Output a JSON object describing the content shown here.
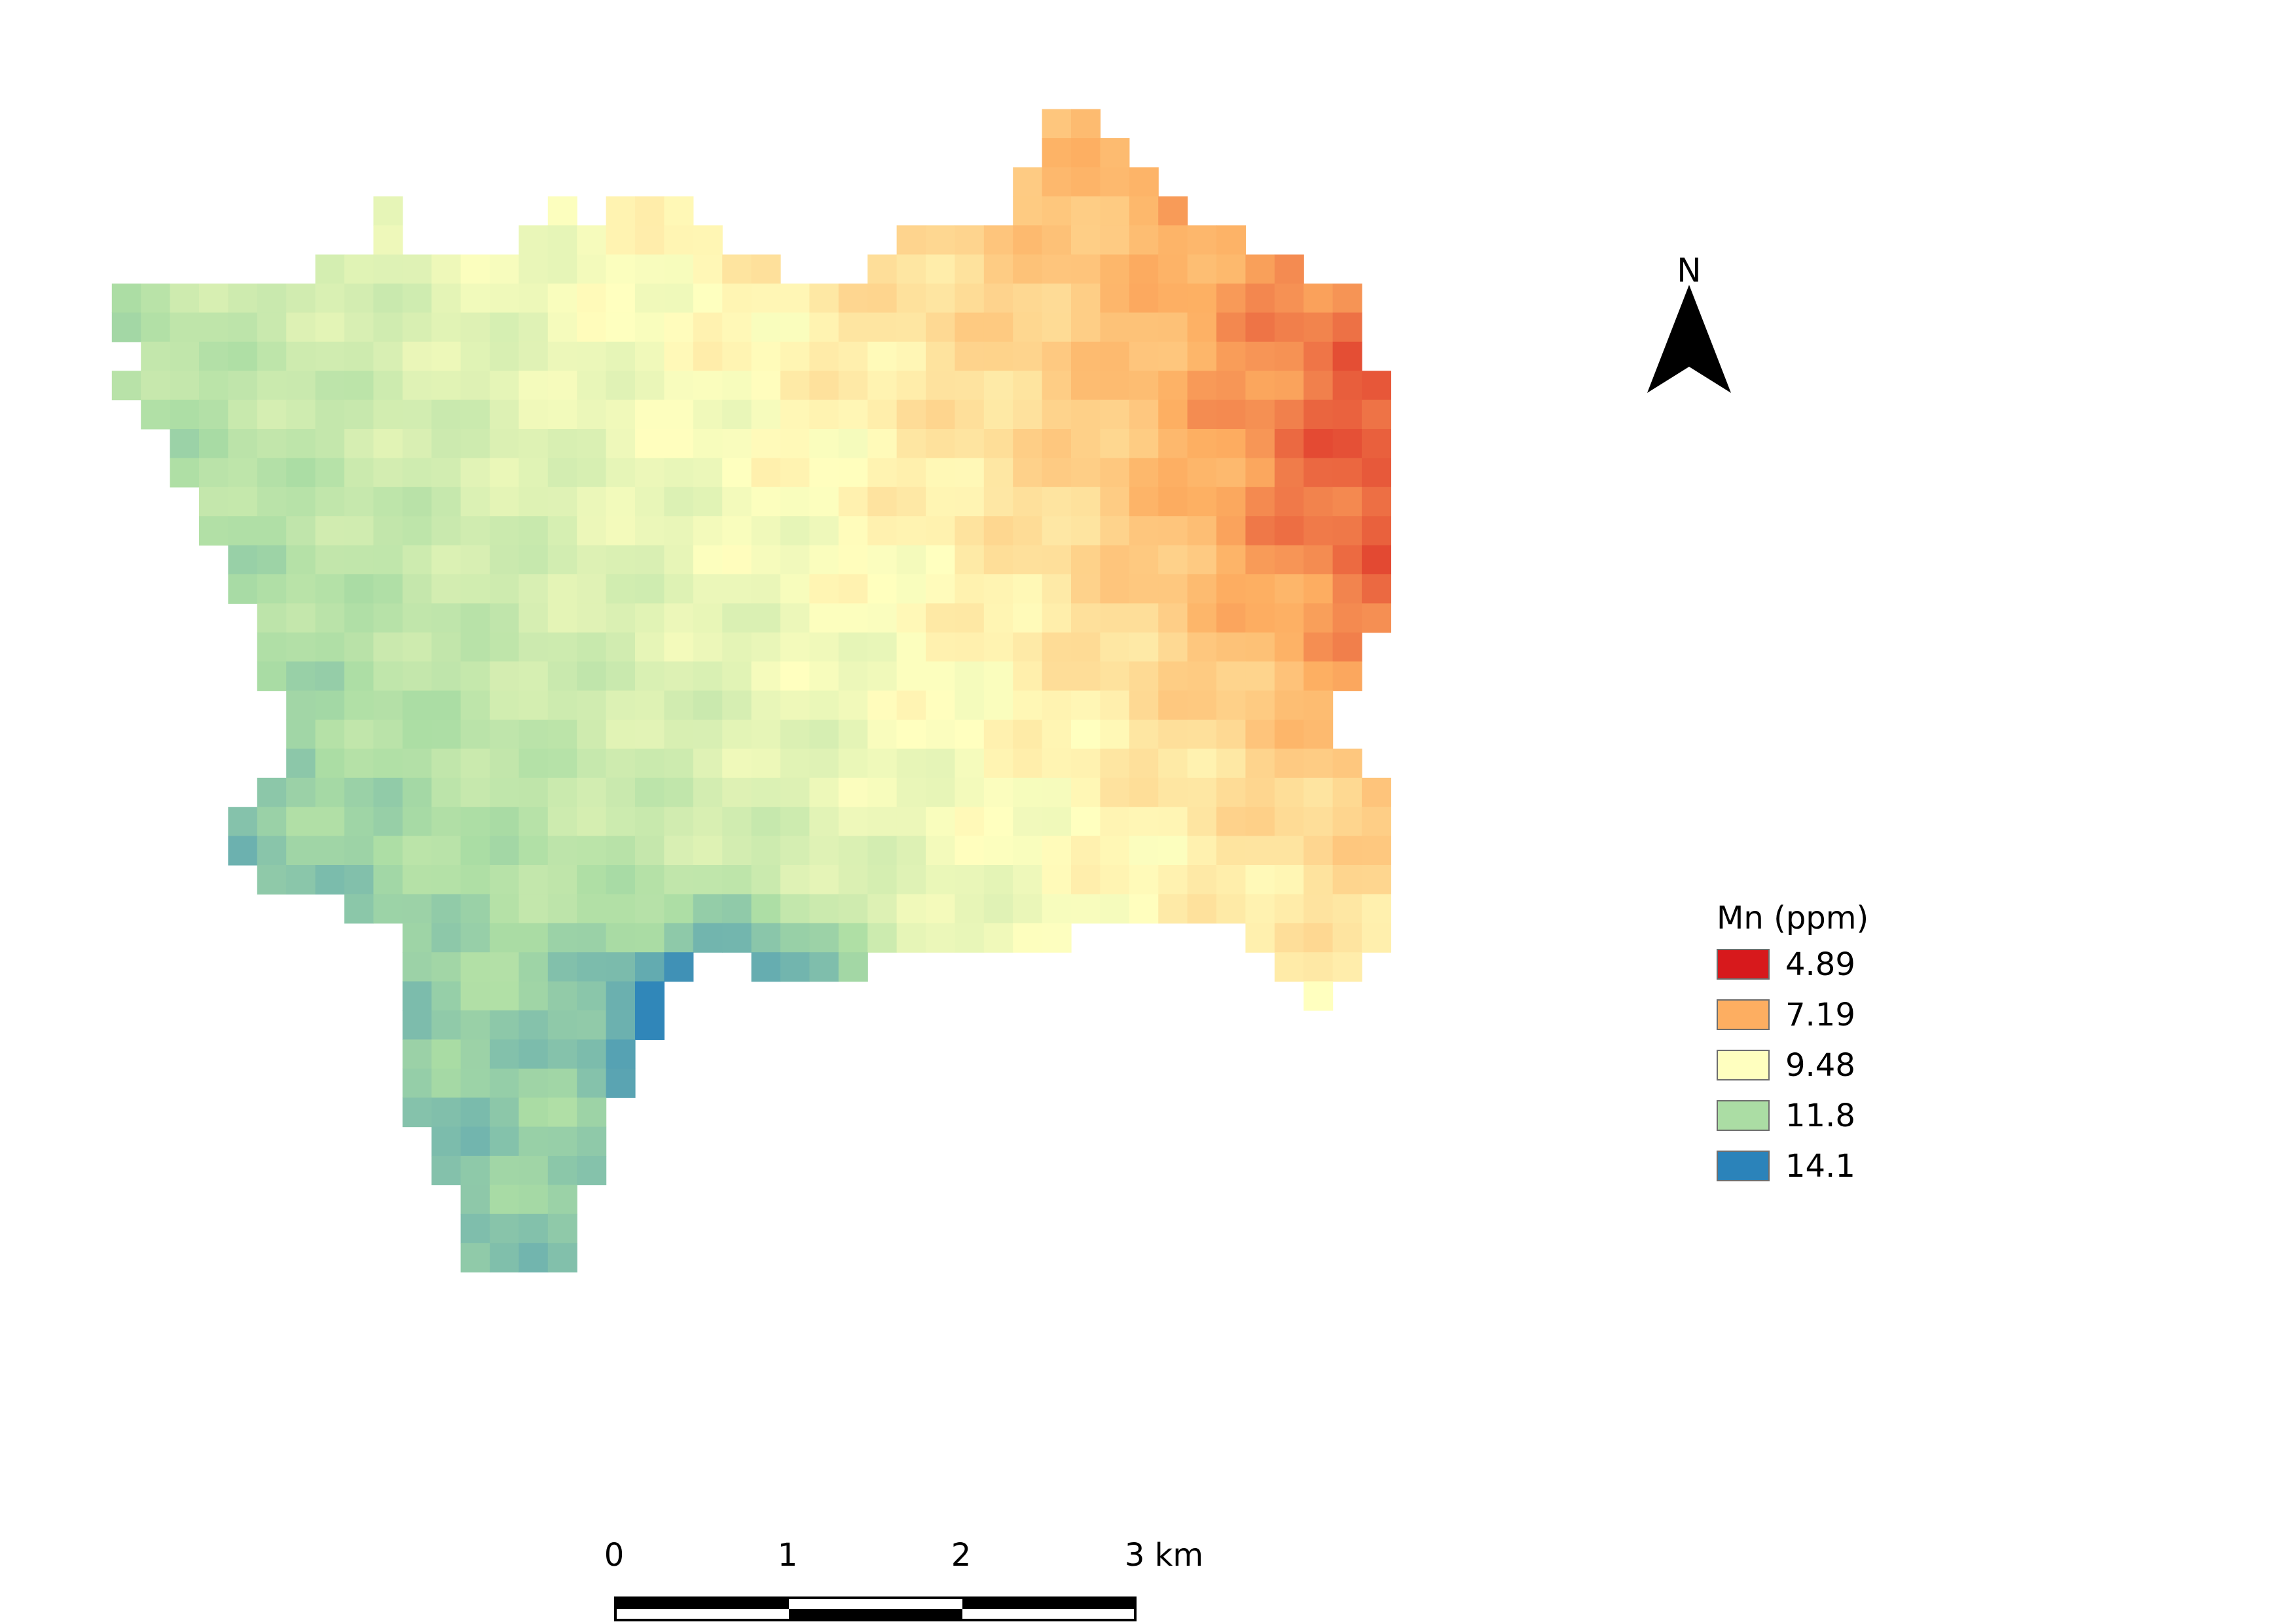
{
  "map": {
    "legend": {
      "title": "Mn (ppm)",
      "classes": [
        {
          "label": "4.89",
          "color": "#d7191c"
        },
        {
          "label": "7.19",
          "color": "#fdae61"
        },
        {
          "label": "9.48",
          "color": "#ffffbf"
        },
        {
          "label": "11.8",
          "color": "#abdda4"
        },
        {
          "label": "14.1",
          "color": "#2b83ba"
        }
      ]
    },
    "north_arrow": {
      "label": "N"
    },
    "scale_bar": {
      "ticks": [
        "0",
        "1",
        "2",
        "3 km"
      ],
      "units": "km"
    },
    "raster": {
      "variable": "Mn (ppm)",
      "value_range": [
        4.89,
        14.1
      ]
    }
  }
}
